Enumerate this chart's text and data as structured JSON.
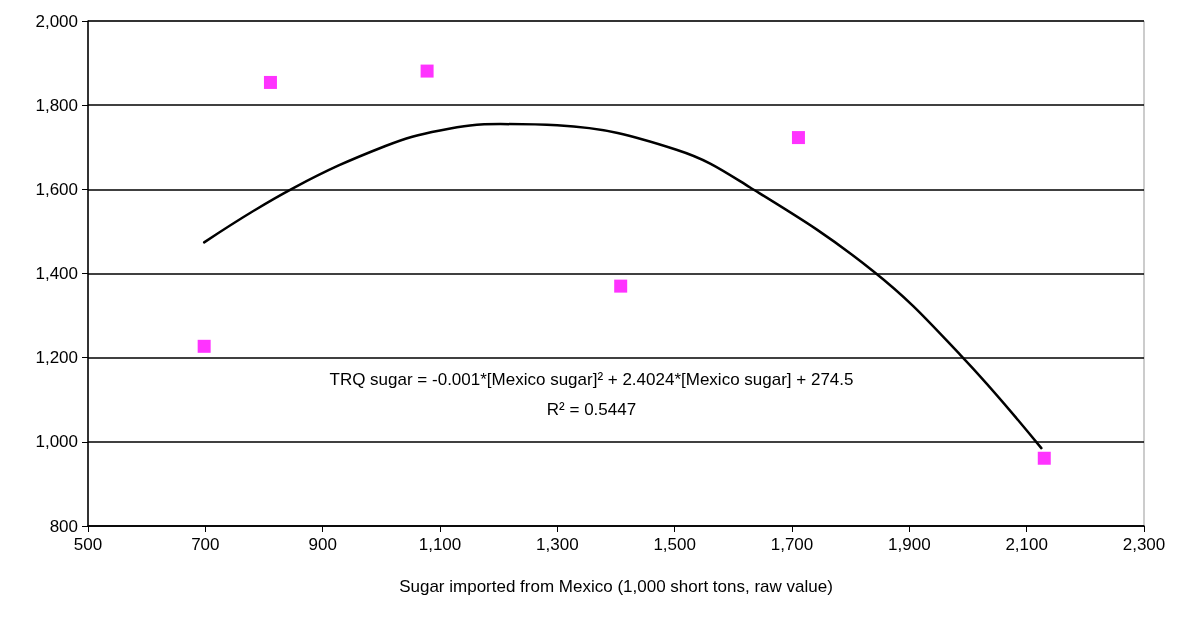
{
  "chart_data": {
    "type": "scatter",
    "xlabel": "Sugar imported from Mexico (1,000 short tons, raw value)",
    "series": [
      {
        "color": "#ff00ff",
        "marker": "square",
        "x": [
          698,
          811,
          1078,
          1408,
          1711,
          2130
        ],
        "values": [
          1227,
          1854,
          1881,
          1370,
          1723,
          961
        ]
      },
      {
        "type": "line",
        "color": "#000000",
        "marker": "none",
        "line_style": "solid",
        "x": [
          698,
          850,
          1007,
          1100,
          1203,
          1300,
          1503,
          1628,
          1838,
          1988,
          2125
        ],
        "values": [
          1474,
          1603,
          1703,
          1740,
          1755,
          1752,
          1694,
          1605,
          1406,
          1205,
          985
        ]
      }
    ],
    "xlim": [
      500,
      2300
    ],
    "xticks": [
      500,
      700,
      900,
      {
        "value": 1100,
        "label": "1,100"
      },
      {
        "value": 1300,
        "label": "1,300"
      },
      {
        "value": 1500,
        "label": "1,500"
      },
      {
        "value": 1700,
        "label": "1,700"
      },
      {
        "value": 1900,
        "label": "1,900"
      },
      {
        "value": 2100,
        "label": "2,100"
      },
      {
        "value": 2300,
        "label": "2,300"
      }
    ],
    "ylim": [
      800,
      2000
    ],
    "yticks": [
      800,
      {
        "value": 1000,
        "label": "1,000"
      },
      {
        "value": 1200,
        "label": "1,200"
      },
      {
        "value": 1400,
        "label": "1,400"
      },
      {
        "value": 1600,
        "label": "1,600"
      },
      {
        "value": 1800,
        "label": "1,800"
      },
      {
        "value": 2000,
        "label": "2,000"
      }
    ],
    "grid": "y",
    "annotations": [
      "TRQ sugar = -0.001*[Mexico sugar]² + 2.4024*[Mexico sugar] + 274.5",
      "R² = 0.5447"
    ]
  }
}
